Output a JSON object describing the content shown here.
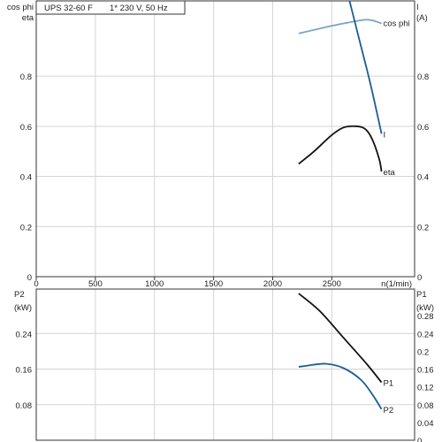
{
  "chart_data": [
    {
      "type": "line",
      "title": "UPS 32-60 F",
      "subtitle": "1* 230 V, 50 Hz",
      "xlabel": "n(1/min)",
      "xlim": [
        0,
        3200
      ],
      "x_ticks": [
        0,
        500,
        1000,
        1500,
        2000,
        2500
      ],
      "ylabel_left": [
        "cos phi",
        "eta"
      ],
      "ylim_left": [
        0,
        1.1
      ],
      "y_ticks_left": [
        0,
        0.2,
        0.4,
        0.6,
        0.8
      ],
      "ylabel_right": [
        "I",
        "(A)"
      ],
      "ylim_right": [
        0,
        1.1
      ],
      "y_ticks_right": [
        0,
        0.2,
        0.4,
        0.6,
        0.8
      ],
      "grid": true,
      "series": [
        {
          "name": "cos phi",
          "axis": "left",
          "color": "#7aa6c6",
          "x": [
            2220,
            2400,
            2600,
            2800,
            2920
          ],
          "y": [
            0.97,
            0.99,
            1.01,
            1.025,
            1.01
          ]
        },
        {
          "name": "I",
          "axis": "right",
          "color": "#1b5e96",
          "x": [
            2650,
            2730,
            2800,
            2860,
            2920
          ],
          "y": [
            1.1,
            0.95,
            0.82,
            0.7,
            0.57
          ]
        },
        {
          "name": "eta",
          "axis": "left",
          "color": "#111111",
          "x": [
            2220,
            2350,
            2500,
            2600,
            2700,
            2780,
            2840,
            2900,
            2920
          ],
          "y": [
            0.45,
            0.5,
            0.565,
            0.595,
            0.6,
            0.59,
            0.55,
            0.47,
            0.42
          ]
        }
      ]
    },
    {
      "type": "line",
      "xlim": [
        0,
        3200
      ],
      "ylabel_left": [
        "P2",
        "(kW)"
      ],
      "ylim_left": [
        0,
        0.34
      ],
      "y_ticks_left": [
        0.08,
        0.16,
        0.24
      ],
      "ylabel_right": [
        "P1",
        "(kW)"
      ],
      "ylim_right": [
        0,
        0.34
      ],
      "y_ticks_right": [
        0,
        0.04,
        0.08,
        0.12,
        0.16,
        0.2,
        0.24,
        0.28
      ],
      "grid": true,
      "series": [
        {
          "name": "P1",
          "axis": "right",
          "color": "#111111",
          "x": [
            2220,
            2400,
            2600,
            2800,
            2920
          ],
          "y": [
            0.33,
            0.29,
            0.23,
            0.17,
            0.13
          ]
        },
        {
          "name": "P2",
          "axis": "left",
          "color": "#1b5e96",
          "x": [
            2220,
            2300,
            2450,
            2600,
            2750,
            2850,
            2920
          ],
          "y": [
            0.165,
            0.168,
            0.172,
            0.162,
            0.135,
            0.1,
            0.07
          ]
        }
      ]
    }
  ]
}
